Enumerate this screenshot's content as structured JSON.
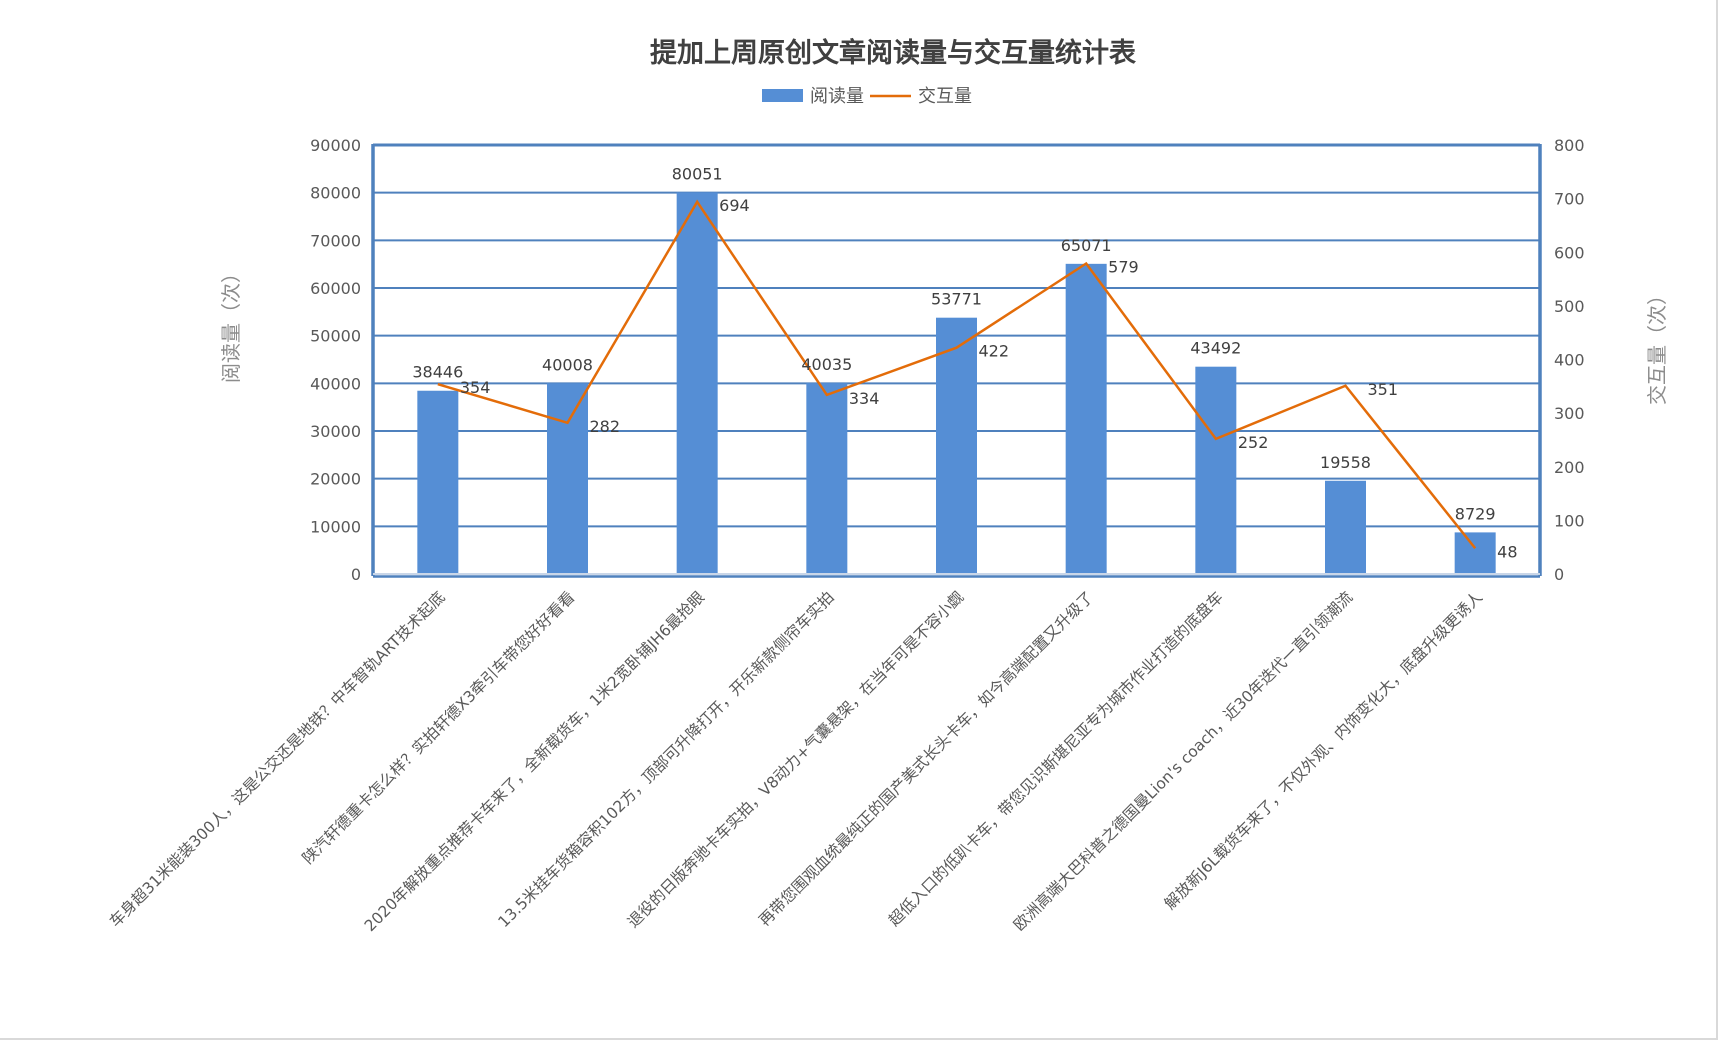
{
  "chart_data": {
    "type": "bar",
    "title": "提加上周原创文章阅读量与交互量统计表",
    "categories": [
      "车身超31米能装300人，这是公交还是地铁？中车智轨ART技术起底",
      "陕汽轩德重卡怎么样？实拍轩德X3牵引车带您好好看看",
      "2020年解放重点推荐卡车来了，全新载货车，1米2宽卧铺JH6最抢眼",
      "13.5米挂车货箱容积102方，顶部可升降打开，开乐新款侧帘车实拍",
      "退役的日版奔驰卡车实拍，V8动力+气囊悬架，在当年可是不容小觑",
      "再带您围观血统最纯正的国产美式长头卡车，如今高端配置又升级了",
      "超低入口的低趴卡车，带您见识斯堪尼亚专为城市作业打造的底盘车",
      "欧洲高端大巴科普之德国曼Lion's coach，近30年迭代一直引领潮流",
      "解放新J6L载货车来了，不仅外观、内饰变化大，底盘升级更诱人"
    ],
    "series": [
      {
        "name": "阅读量",
        "type": "bar",
        "axis": "left",
        "color": "#558ed5",
        "values": [
          38446,
          40008,
          80051,
          40035,
          53771,
          65071,
          43492,
          19558,
          8729
        ]
      },
      {
        "name": "交互量",
        "type": "line",
        "axis": "right",
        "color": "#e36c09",
        "values": [
          354,
          282,
          694,
          334,
          422,
          579,
          252,
          351,
          48
        ]
      }
    ],
    "xlabel": "",
    "ylabel": "阅读量（次）",
    "ylabel_right": "交互量（次）",
    "ylim": [
      0,
      90000
    ],
    "ylim_right": [
      0,
      800
    ],
    "yticks": [
      "0",
      "10000",
      "20000",
      "30000",
      "40000",
      "50000",
      "60000",
      "70000",
      "80000",
      "90000"
    ],
    "yticks_right": [
      "0",
      "100",
      "200",
      "300",
      "400",
      "500",
      "600",
      "700",
      "800"
    ],
    "grid": true,
    "legend_position": "top"
  },
  "legend": {
    "bar_label": "阅读量",
    "line_label": "交互量"
  },
  "colors": {
    "bar": "#558ed5",
    "line": "#e36c09",
    "axis": "#4f81bd",
    "grid": "#4f81bd"
  }
}
